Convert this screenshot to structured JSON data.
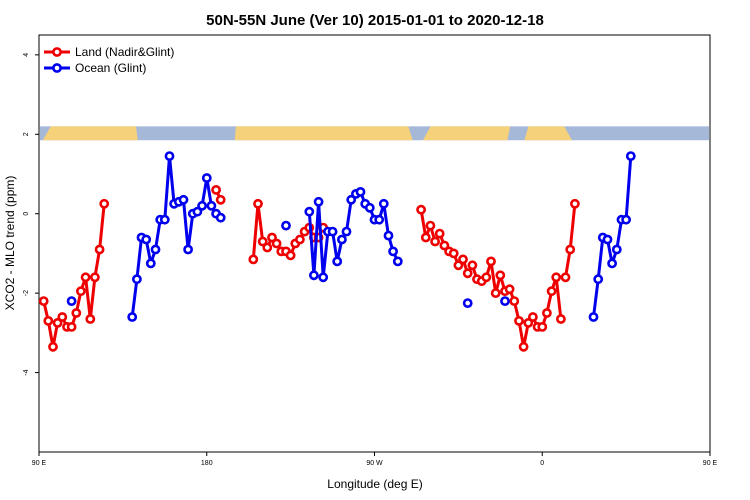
{
  "chart_data": {
    "type": "line",
    "title": "50N-55N June (Ver 10)   2015-01-01 to 2020-12-18",
    "xlabel": "Longitude (deg E)",
    "ylabel": "XCO2 - MLO trend (ppm)",
    "xlim": [
      90,
      450
    ],
    "ylim": [
      -6,
      4.5
    ],
    "x_ticks": [
      {
        "value": 90,
        "label": "90 E"
      },
      {
        "value": 180,
        "label": "180"
      },
      {
        "value": 270,
        "label": "90 W"
      },
      {
        "value": 360,
        "label": "0"
      },
      {
        "value": 450,
        "label": "90 E"
      },
      {
        "value": 540,
        "label": "180"
      }
    ],
    "y_ticks": [
      {
        "value": -4,
        "label": "-4"
      },
      {
        "value": -2,
        "label": "-2"
      },
      {
        "value": 0,
        "label": "0"
      },
      {
        "value": 2,
        "label": "2"
      },
      {
        "value": 4,
        "label": "4"
      }
    ],
    "legend_position": "top-left",
    "series": [
      {
        "name": "Land (Nadir&Glint)",
        "color": "#ee0000",
        "segments": [
          [
            [
              92.5,
              -2.2
            ],
            [
              95.0,
              -2.7
            ],
            [
              97.5,
              -3.35
            ],
            [
              100.0,
              -2.75
            ],
            [
              102.5,
              -2.6
            ],
            [
              105.0,
              -2.85
            ],
            [
              107.5,
              -2.85
            ],
            [
              110.0,
              -2.5
            ],
            [
              112.5,
              -1.95
            ],
            [
              115.0,
              -1.6
            ],
            [
              117.5,
              -2.65
            ],
            [
              120.0,
              -1.6
            ],
            [
              122.5,
              -0.9
            ],
            [
              125.0,
              0.25
            ]
          ],
          [
            [
              185.0,
              0.6
            ],
            [
              187.5,
              0.35
            ]
          ],
          [
            [
              205.0,
              -1.15
            ],
            [
              207.5,
              0.25
            ],
            [
              210.0,
              -0.7
            ],
            [
              212.5,
              -0.85
            ],
            [
              215.0,
              -0.6
            ],
            [
              217.5,
              -0.75
            ],
            [
              220.0,
              -0.95
            ],
            [
              222.5,
              -0.95
            ],
            [
              225.0,
              -1.05
            ],
            [
              227.5,
              -0.75
            ],
            [
              230.0,
              -0.65
            ],
            [
              232.5,
              -0.45
            ],
            [
              235.0,
              -0.35
            ],
            [
              237.5,
              -0.6
            ],
            [
              240.0,
              -0.6
            ],
            [
              242.5,
              -0.35
            ]
          ],
          [
            [
              295.0,
              0.1
            ],
            [
              297.5,
              -0.6
            ],
            [
              300.0,
              -0.3
            ],
            [
              302.5,
              -0.7
            ],
            [
              305.0,
              -0.5
            ],
            [
              307.5,
              -0.8
            ],
            [
              310.0,
              -0.95
            ],
            [
              312.5,
              -1.0
            ],
            [
              315.0,
              -1.3
            ],
            [
              317.5,
              -1.15
            ],
            [
              320.0,
              -1.5
            ],
            [
              322.5,
              -1.3
            ],
            [
              325.0,
              -1.65
            ],
            [
              327.5,
              -1.7
            ],
            [
              330.0,
              -1.6
            ],
            [
              332.5,
              -1.2
            ],
            [
              335.0,
              -2.0
            ],
            [
              337.5,
              -1.55
            ],
            [
              340.0,
              -1.95
            ],
            [
              342.5,
              -1.9
            ],
            [
              345.0,
              -2.2
            ],
            [
              347.5,
              -2.7
            ],
            [
              350.0,
              -3.35
            ],
            [
              352.5,
              -2.75
            ],
            [
              355.0,
              -2.6
            ],
            [
              357.5,
              -2.85
            ],
            [
              360.0,
              -2.85
            ],
            [
              362.5,
              -2.5
            ],
            [
              365.0,
              -1.95
            ],
            [
              367.5,
              -1.6
            ],
            [
              370.0,
              -2.65
            ]
          ],
          [
            [
              372.5,
              -1.6
            ],
            [
              375.0,
              -0.9
            ],
            [
              377.5,
              0.25
            ]
          ]
        ]
      },
      {
        "name": "Ocean (Glint)",
        "color": "#0000ee",
        "segments": [
          [
            [
              107.5,
              -2.2
            ]
          ],
          [
            [
              140.0,
              -2.6
            ],
            [
              142.5,
              -1.65
            ],
            [
              145.0,
              -0.6
            ],
            [
              147.5,
              -0.65
            ],
            [
              150.0,
              -1.25
            ],
            [
              152.5,
              -0.9
            ],
            [
              155.0,
              -0.15
            ],
            [
              157.5,
              -0.15
            ],
            [
              160.0,
              1.45
            ],
            [
              162.5,
              0.25
            ],
            [
              165.0,
              0.3
            ],
            [
              167.5,
              0.35
            ],
            [
              170.0,
              -0.9
            ],
            [
              172.5,
              0.0
            ],
            [
              175.0,
              0.05
            ],
            [
              177.5,
              0.2
            ],
            [
              180.0,
              0.9
            ],
            [
              182.5,
              0.2
            ],
            [
              185.0,
              0.0
            ],
            [
              187.5,
              -0.1
            ]
          ],
          [
            [
              222.5,
              -0.3
            ]
          ],
          [
            [
              235.0,
              0.05
            ],
            [
              237.5,
              -1.55
            ],
            [
              240.0,
              0.3
            ],
            [
              242.5,
              -1.6
            ],
            [
              245.0,
              -0.45
            ],
            [
              247.5,
              -0.45
            ],
            [
              250.0,
              -1.2
            ],
            [
              252.5,
              -0.65
            ],
            [
              255.0,
              -0.45
            ],
            [
              257.5,
              0.35
            ],
            [
              260.0,
              0.5
            ],
            [
              262.5,
              0.55
            ],
            [
              265.0,
              0.25
            ],
            [
              267.5,
              0.15
            ],
            [
              270.0,
              -0.15
            ],
            [
              272.5,
              -0.15
            ],
            [
              275.0,
              0.25
            ],
            [
              277.5,
              -0.55
            ],
            [
              280.0,
              -0.95
            ],
            [
              282.5,
              -1.2
            ]
          ],
          [
            [
              320.0,
              -2.25
            ]
          ],
          [
            [
              340.0,
              -2.2
            ]
          ],
          [
            [
              387.5,
              -2.6
            ],
            [
              390.0,
              -1.65
            ],
            [
              392.5,
              -0.6
            ],
            [
              395.0,
              -0.65
            ],
            [
              397.5,
              -1.25
            ],
            [
              400.0,
              -0.9
            ],
            [
              402.5,
              -0.15
            ],
            [
              405.0,
              -0.15
            ],
            [
              407.5,
              1.45
            ]
          ]
        ]
      }
    ],
    "landmask": {
      "y_range": [
        1.85,
        2.2
      ],
      "colors": {
        "land": "#f5d27a",
        "ocean": "#a6b8d8"
      }
    }
  }
}
